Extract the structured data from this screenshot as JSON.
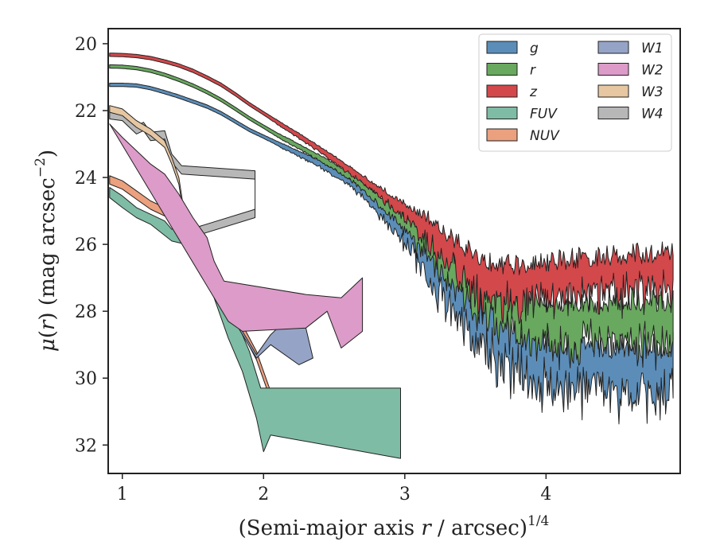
{
  "chart_data": {
    "type": "area",
    "xlabel": "(Semi-major axis r / arcsec)",
    "xlabel_parts": {
      "pre": "(Semi-major axis ",
      "var": "r",
      "post": " / arcsec)",
      "sup": "1/4"
    },
    "ylabel": "μ(r) (mag arcsec−2)",
    "ylabel_parts": {
      "mu": "μ",
      "open": "(",
      "var": "r",
      "close": ") (mag arcsec",
      "sup": "−2",
      "end": ")"
    },
    "xlim": [
      0.9,
      4.95
    ],
    "ylim": [
      32.85,
      19.55
    ],
    "y_inverted": true,
    "xticks": [
      1,
      2,
      3,
      4
    ],
    "yticks": [
      20,
      22,
      24,
      26,
      28,
      30,
      32
    ],
    "grid": false,
    "legend": {
      "placement": "top-right",
      "columns": 2,
      "entries": [
        {
          "label": "g",
          "color": "#5b8db8"
        },
        {
          "label": "r",
          "color": "#69a85f"
        },
        {
          "label": "z",
          "color": "#d2484b"
        },
        {
          "label": "FUV",
          "color": "#7fbca5"
        },
        {
          "label": "NUV",
          "color": "#eba07e"
        },
        {
          "label": "W1",
          "color": "#95a4c6"
        },
        {
          "label": "W2",
          "color": "#dc9bc8"
        },
        {
          "label": "W3",
          "color": "#e6c7a1"
        },
        {
          "label": "W4",
          "color": "#b7b7b7"
        }
      ]
    },
    "series": [
      {
        "name": "g",
        "color": "#5b8db8",
        "x": [
          0.91,
          1.0,
          1.1,
          1.2,
          1.3,
          1.4,
          1.5,
          1.6,
          1.7,
          1.8,
          1.9,
          2.0,
          2.1,
          2.2,
          2.3,
          2.4,
          2.5,
          2.6,
          2.7,
          2.8,
          2.9,
          3.0,
          3.1,
          3.2,
          3.3,
          3.4,
          3.5,
          3.6,
          3.7,
          3.8,
          3.9,
          4.0,
          4.1,
          4.2,
          4.3,
          4.4,
          4.5,
          4.6,
          4.7,
          4.8,
          4.9
        ],
        "y": [
          21.2,
          21.2,
          21.22,
          21.3,
          21.42,
          21.55,
          21.7,
          21.85,
          22.05,
          22.3,
          22.55,
          22.75,
          22.95,
          23.15,
          23.35,
          23.55,
          23.8,
          24.05,
          24.35,
          24.75,
          25.15,
          25.55,
          26.0,
          26.45,
          26.95,
          27.4,
          27.8,
          28.2,
          28.55,
          28.8,
          29.0,
          29.2,
          29.3,
          29.35,
          29.4,
          29.4,
          29.45,
          29.4,
          29.45,
          29.45,
          29.4
        ],
        "noise": [
          0,
          0,
          0,
          0,
          0,
          0,
          0,
          0,
          0,
          0,
          0,
          0,
          0.02,
          0.04,
          0.05,
          0.06,
          0.08,
          0.1,
          0.14,
          0.2,
          0.3,
          0.45,
          0.6,
          0.75,
          0.85,
          0.9,
          0.95,
          0.95,
          0.95,
          0.95,
          0.95,
          0.95,
          0.95,
          0.95,
          0.95,
          0.95,
          0.95,
          0.95,
          0.95,
          0.95,
          0.95
        ]
      },
      {
        "name": "r",
        "color": "#69a85f",
        "x": [
          0.91,
          1.0,
          1.1,
          1.2,
          1.3,
          1.4,
          1.5,
          1.6,
          1.7,
          1.8,
          1.9,
          2.0,
          2.1,
          2.2,
          2.3,
          2.4,
          2.5,
          2.6,
          2.7,
          2.8,
          2.9,
          3.0,
          3.1,
          3.2,
          3.3,
          3.4,
          3.5,
          3.6,
          3.7,
          3.8,
          3.9,
          4.0,
          4.1,
          4.2,
          4.3,
          4.4,
          4.5,
          4.6,
          4.7,
          4.8,
          4.9
        ],
        "y": [
          20.65,
          20.66,
          20.7,
          20.78,
          20.9,
          21.05,
          21.22,
          21.42,
          21.65,
          21.92,
          22.2,
          22.45,
          22.7,
          22.92,
          23.15,
          23.38,
          23.62,
          23.88,
          24.2,
          24.55,
          24.9,
          25.25,
          25.6,
          25.95,
          26.4,
          26.8,
          27.15,
          27.45,
          27.7,
          27.9,
          28.0,
          28.05,
          28.1,
          28.1,
          28.1,
          28.05,
          28.05,
          28.0,
          28.05,
          28.05,
          28.0
        ],
        "noise": [
          0,
          0,
          0,
          0,
          0,
          0,
          0,
          0,
          0,
          0,
          0,
          0,
          0.02,
          0.03,
          0.04,
          0.05,
          0.06,
          0.08,
          0.1,
          0.14,
          0.2,
          0.3,
          0.45,
          0.55,
          0.65,
          0.7,
          0.8,
          0.85,
          0.85,
          0.85,
          0.85,
          0.85,
          0.85,
          0.85,
          0.85,
          0.85,
          0.85,
          0.85,
          0.85,
          0.85,
          0.85
        ]
      },
      {
        "name": "z",
        "color": "#d2484b",
        "x": [
          0.91,
          1.0,
          1.1,
          1.2,
          1.3,
          1.4,
          1.5,
          1.6,
          1.7,
          1.8,
          1.9,
          2.0,
          2.1,
          2.2,
          2.3,
          2.4,
          2.5,
          2.6,
          2.7,
          2.8,
          2.9,
          3.0,
          3.1,
          3.2,
          3.3,
          3.4,
          3.5,
          3.6,
          3.7,
          3.8,
          3.9,
          4.0,
          4.1,
          4.2,
          4.3,
          4.4,
          4.5,
          4.6,
          4.7,
          4.8,
          4.9
        ],
        "y": [
          20.3,
          20.31,
          20.34,
          20.4,
          20.5,
          20.62,
          20.78,
          20.98,
          21.2,
          21.48,
          21.78,
          22.05,
          22.32,
          22.58,
          22.85,
          23.12,
          23.4,
          23.7,
          24.0,
          24.3,
          24.6,
          24.9,
          25.2,
          25.5,
          25.95,
          26.35,
          26.65,
          26.85,
          26.95,
          26.95,
          26.9,
          26.85,
          26.8,
          26.75,
          26.7,
          26.7,
          26.65,
          26.6,
          26.6,
          26.55,
          26.55
        ],
        "noise": [
          0,
          0,
          0,
          0,
          0,
          0,
          0,
          0,
          0,
          0,
          0,
          0,
          0.02,
          0.03,
          0.04,
          0.05,
          0.06,
          0.08,
          0.1,
          0.14,
          0.2,
          0.28,
          0.4,
          0.55,
          0.65,
          0.7,
          0.75,
          0.75,
          0.75,
          0.75,
          0.75,
          0.75,
          0.75,
          0.75,
          0.75,
          0.75,
          0.75,
          0.75,
          0.75,
          0.75,
          0.75
        ]
      },
      {
        "name": "W4",
        "color": "#b7b7b7",
        "upper": [
          [
            0.91,
            22.0
          ],
          [
            1.0,
            22.05
          ],
          [
            1.1,
            22.45
          ],
          [
            1.15,
            22.35
          ],
          [
            1.2,
            22.65
          ],
          [
            1.3,
            22.6
          ],
          [
            1.35,
            23.3
          ],
          [
            1.42,
            23.65
          ],
          [
            1.94,
            23.8
          ],
          [
            1.94,
            24.95
          ],
          [
            1.44,
            25.6
          ]
        ],
        "lower_x": [
          0.91,
          1.44
        ],
        "width": 0.25
      },
      {
        "name": "W3",
        "color": "#e6c7a1",
        "upper": [
          [
            0.91,
            21.85
          ],
          [
            1.0,
            21.95
          ],
          [
            1.1,
            22.3
          ],
          [
            1.2,
            22.55
          ],
          [
            1.3,
            22.9
          ],
          [
            1.35,
            23.4
          ],
          [
            1.4,
            24.0
          ],
          [
            1.44,
            25.1
          ]
        ],
        "width": 0.2
      },
      {
        "name": "W2",
        "color": "#dc9bc8",
        "upper": [
          [
            0.91,
            22.4
          ],
          [
            1.0,
            22.8
          ],
          [
            1.1,
            23.2
          ],
          [
            1.2,
            23.6
          ],
          [
            1.3,
            23.9
          ],
          [
            1.4,
            24.5
          ],
          [
            1.5,
            25.2
          ],
          [
            1.6,
            25.8
          ],
          [
            1.65,
            26.5
          ],
          [
            1.72,
            27.1
          ],
          [
            2.3,
            27.5
          ],
          [
            2.55,
            27.6
          ],
          [
            2.7,
            27.0
          ],
          [
            2.7,
            28.6
          ],
          [
            2.55,
            29.1
          ],
          [
            2.45,
            28.0
          ],
          [
            2.3,
            28.5
          ],
          [
            1.85,
            28.6
          ],
          [
            1.75,
            28.3
          ]
        ],
        "closed": true
      },
      {
        "name": "W1",
        "color": "#95a4c6",
        "upper": [
          [
            1.78,
            28.2
          ],
          [
            1.85,
            28.6
          ],
          [
            1.95,
            29.3
          ],
          [
            2.05,
            28.7
          ],
          [
            2.1,
            28.5
          ],
          [
            2.3,
            28.5
          ],
          [
            2.35,
            29.4
          ],
          [
            2.25,
            29.6
          ],
          [
            2.05,
            29.0
          ],
          [
            1.95,
            29.4
          ]
        ],
        "closed": true
      },
      {
        "name": "NUV",
        "color": "#eba07e",
        "upper": [
          [
            0.91,
            23.95
          ],
          [
            1.0,
            24.1
          ],
          [
            1.1,
            24.4
          ],
          [
            1.2,
            24.7
          ],
          [
            1.3,
            24.9
          ],
          [
            1.38,
            25.0
          ],
          [
            1.45,
            25.2
          ],
          [
            1.55,
            25.8
          ],
          [
            1.65,
            26.7
          ],
          [
            1.75,
            27.5
          ],
          [
            1.85,
            28.4
          ],
          [
            1.95,
            29.2
          ],
          [
            2.05,
            30.4
          ],
          [
            2.05,
            31.0
          ]
        ],
        "width": 0.25
      },
      {
        "name": "FUV",
        "color": "#7fbca5",
        "upper": [
          [
            0.91,
            24.3
          ],
          [
            1.0,
            24.55
          ],
          [
            1.1,
            24.9
          ],
          [
            1.2,
            25.1
          ],
          [
            1.3,
            25.3
          ],
          [
            1.35,
            25.55
          ],
          [
            1.42,
            25.4
          ],
          [
            1.5,
            25.7
          ],
          [
            1.6,
            26.4
          ],
          [
            1.7,
            27.2
          ],
          [
            1.8,
            28.2
          ],
          [
            1.9,
            29.2
          ],
          [
            1.98,
            30.3
          ],
          [
            2.02,
            30.3
          ],
          [
            2.97,
            30.3
          ],
          [
            2.97,
            32.4
          ],
          [
            2.05,
            31.7
          ],
          [
            2.0,
            32.2
          ],
          [
            1.95,
            31.2
          ],
          [
            1.85,
            29.8
          ],
          [
            1.75,
            28.8
          ],
          [
            1.65,
            27.6
          ],
          [
            1.55,
            26.6
          ],
          [
            1.45,
            26.0
          ],
          [
            1.35,
            25.9
          ],
          [
            1.2,
            25.4
          ],
          [
            1.1,
            25.2
          ],
          [
            1.0,
            24.9
          ],
          [
            0.91,
            24.6
          ]
        ],
        "closed": true
      }
    ]
  }
}
